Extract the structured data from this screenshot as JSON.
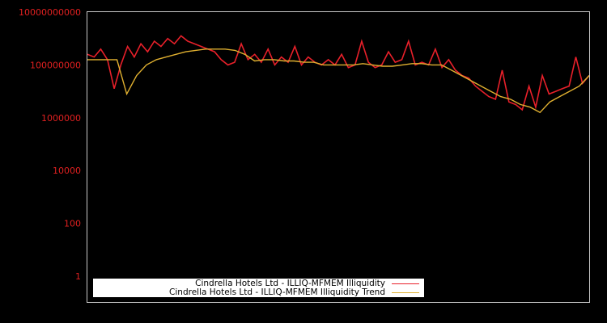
{
  "chart_data": {
    "type": "line",
    "title": "",
    "xlabel": "",
    "ylabel": "",
    "yscale": "log",
    "ylim": [
      0.5,
      10000000000
    ],
    "ytick_labels": [
      "10000000000",
      "100000000",
      "1000000",
      "10000",
      "100",
      "1"
    ],
    "ytick_values": [
      10000000000,
      100000000,
      1000000,
      10000,
      100,
      1
    ],
    "grid": false,
    "legend_position": "lower-left",
    "series": [
      {
        "name": "Cindrella Hotels Ltd - ILLIQ-MFMEM Illiquidity",
        "color": "#e8202a",
        "approx_log10_values": [
          8.4,
          8.3,
          8.6,
          8.2,
          7.1,
          8.0,
          8.7,
          8.3,
          8.8,
          8.5,
          8.9,
          8.7,
          9.0,
          8.8,
          9.1,
          8.9,
          8.8,
          8.7,
          8.6,
          8.5,
          8.2,
          8.0,
          8.1,
          8.8,
          8.2,
          8.4,
          8.1,
          8.6,
          8.0,
          8.3,
          8.1,
          8.7,
          8.0,
          8.3,
          8.1,
          8.0,
          8.2,
          8.0,
          8.4,
          7.9,
          8.0,
          8.9,
          8.1,
          7.9,
          8.0,
          8.5,
          8.1,
          8.2,
          8.9,
          8.0,
          8.1,
          8.0,
          8.6,
          7.9,
          8.2,
          7.8,
          7.6,
          7.5,
          7.2,
          7.0,
          6.8,
          6.7,
          7.8,
          6.6,
          6.5,
          6.3,
          7.2,
          6.4,
          7.6,
          6.9,
          7.0,
          7.1,
          7.2,
          8.3,
          7.3,
          7.6
        ]
      },
      {
        "name": "Cindrella Hotels Ltd - ILLIQ-MFMEM Illiquidity Trend",
        "color": "#e0b030",
        "approx_log10_values": [
          8.2,
          8.2,
          8.2,
          8.2,
          6.9,
          7.6,
          8.0,
          8.2,
          8.3,
          8.4,
          8.5,
          8.55,
          8.6,
          8.6,
          8.6,
          8.55,
          8.4,
          8.15,
          8.2,
          8.2,
          8.15,
          8.15,
          8.1,
          8.1,
          8.0,
          8.0,
          8.0,
          8.0,
          8.05,
          8.0,
          7.95,
          7.95,
          8.0,
          8.05,
          8.05,
          8.0,
          8.0,
          7.8,
          7.6,
          7.4,
          7.2,
          7.0,
          6.8,
          6.7,
          6.5,
          6.4,
          6.2,
          6.6,
          6.8,
          7.0,
          7.2,
          7.6
        ]
      }
    ]
  },
  "legend": {
    "items": [
      {
        "label": "Cindrella Hotels Ltd - ILLIQ-MFMEM Illiquidity",
        "color": "#e8202a"
      },
      {
        "label": "Cindrella Hotels Ltd - ILLIQ-MFMEM Illiquidity Trend",
        "color": "#e0b030"
      }
    ]
  }
}
